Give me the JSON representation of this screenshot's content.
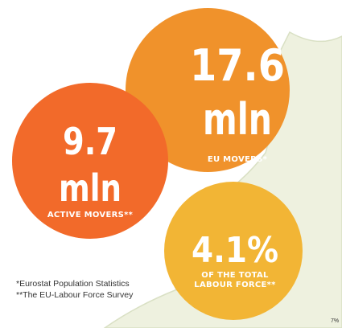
{
  "bubbles": [
    {
      "value": "17.6",
      "unit": "mln",
      "label": "EU MOVERS*"
    },
    {
      "value": "9.7",
      "unit": "mln",
      "label": "ACTIVE MOVERS**"
    },
    {
      "value": "4.1%",
      "label_lines": [
        "OF THE TOTAL",
        "LABOUR FORCE**"
      ]
    }
  ],
  "footnotes": [
    "*Eurostat Population Statistics",
    "**The EU-Labour Force Survey"
  ],
  "corner_label": "7%"
}
